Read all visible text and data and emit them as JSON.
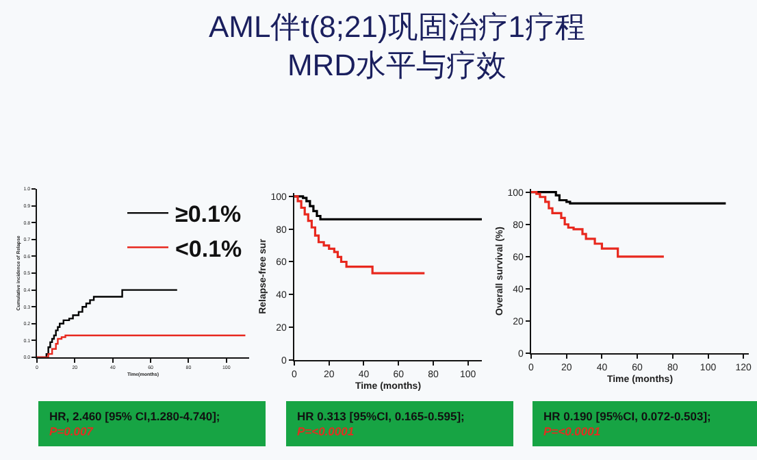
{
  "chart_data": [
    {
      "type": "step",
      "xlabel": "Time(months)",
      "ylabel": "Cumulative incidence of Relapse",
      "legend": "top right",
      "grid": false,
      "marker": "none",
      "xlim": [
        0,
        112
      ],
      "xticks": [
        0,
        20,
        40,
        60,
        80,
        100
      ],
      "ylim": [
        0,
        1
      ],
      "yticks": [
        {
          "value": 0,
          "label": "0.0"
        },
        0.1,
        0.2,
        0.3,
        0.4,
        0.5,
        0.6,
        0.7,
        0.8,
        0.9,
        {
          "value": 1,
          "label": "1.0"
        }
      ],
      "series": [
        {
          "name": "≥0.1%",
          "color": "#000000",
          "x": [
            0,
            4,
            5,
            6,
            7,
            8,
            9,
            10,
            11,
            12,
            14,
            17,
            19,
            22,
            24,
            26,
            28,
            30,
            45,
            74
          ],
          "values": [
            0,
            0,
            0.02,
            0.06,
            0.09,
            0.11,
            0.13,
            0.16,
            0.18,
            0.2,
            0.22,
            0.23,
            0.25,
            0.27,
            0.3,
            0.32,
            0.34,
            0.36,
            0.4,
            0.4
          ]
        },
        {
          "name": "<0.1%",
          "color": "#e8281e",
          "x": [
            0,
            5,
            6,
            8,
            10,
            11,
            13,
            15,
            110
          ],
          "values": [
            0,
            0,
            0.02,
            0.05,
            0.08,
            0.11,
            0.12,
            0.13,
            0.13
          ]
        }
      ],
      "annotations": [
        "HR, 2.460 [95% CI,1.280-4.740];",
        "P=0.007"
      ]
    },
    {
      "type": "step",
      "title": "AML伴t(8;21)巩固治疗1疗程\nMRD水平与疗效",
      "xlabel": "Time (months)",
      "ylabel": "Relapse-free sur",
      "grid": false,
      "marker": "none",
      "xlim": [
        0,
        108
      ],
      "xticks": [
        0,
        20,
        40,
        60,
        80,
        100
      ],
      "ylim": [
        0,
        102
      ],
      "yticks": [
        0,
        20,
        40,
        60,
        80,
        100
      ],
      "series": [
        {
          "color": "#000000",
          "x": [
            0,
            3,
            5,
            7,
            9,
            11,
            13,
            15,
            108
          ],
          "values": [
            100,
            100,
            99,
            97,
            94,
            91,
            88,
            86,
            86
          ]
        },
        {
          "color": "#e8281e",
          "x": [
            0,
            2,
            4,
            6,
            8,
            10,
            12,
            14,
            17,
            20,
            23,
            25,
            27,
            30,
            45,
            75
          ],
          "values": [
            100,
            97,
            93,
            89,
            85,
            81,
            76,
            72,
            70,
            68,
            66,
            63,
            60,
            57,
            53,
            53
          ]
        }
      ],
      "annotations": [
        "HR 0.313 [95%CI, 0.165-0.595];",
        "P=<0.0001"
      ]
    },
    {
      "type": "step",
      "xlabel": "Time (months)",
      "ylabel": "Overall survival (%)",
      "grid": false,
      "marker": "none",
      "xlim": [
        0,
        123
      ],
      "xticks": [
        0,
        20,
        40,
        60,
        80,
        100,
        120
      ],
      "ylim": [
        0,
        102
      ],
      "yticks": [
        0,
        20,
        40,
        60,
        80,
        100
      ],
      "series": [
        {
          "color": "#000000",
          "x": [
            0,
            12,
            14,
            16,
            20,
            22,
            110
          ],
          "values": [
            100,
            100,
            98,
            95,
            94,
            93,
            93
          ]
        },
        {
          "color": "#e8281e",
          "x": [
            0,
            3,
            5,
            8,
            10,
            12,
            17,
            19,
            21,
            24,
            29,
            31,
            36,
            40,
            49,
            75
          ],
          "values": [
            100,
            99,
            97,
            94,
            90,
            87,
            84,
            80,
            78,
            77,
            74,
            71,
            68,
            65,
            60,
            60
          ]
        }
      ],
      "annotations": [
        "HR 0.190 [95%CI, 0.072-0.503];",
        "P=<0.0001"
      ]
    }
  ]
}
